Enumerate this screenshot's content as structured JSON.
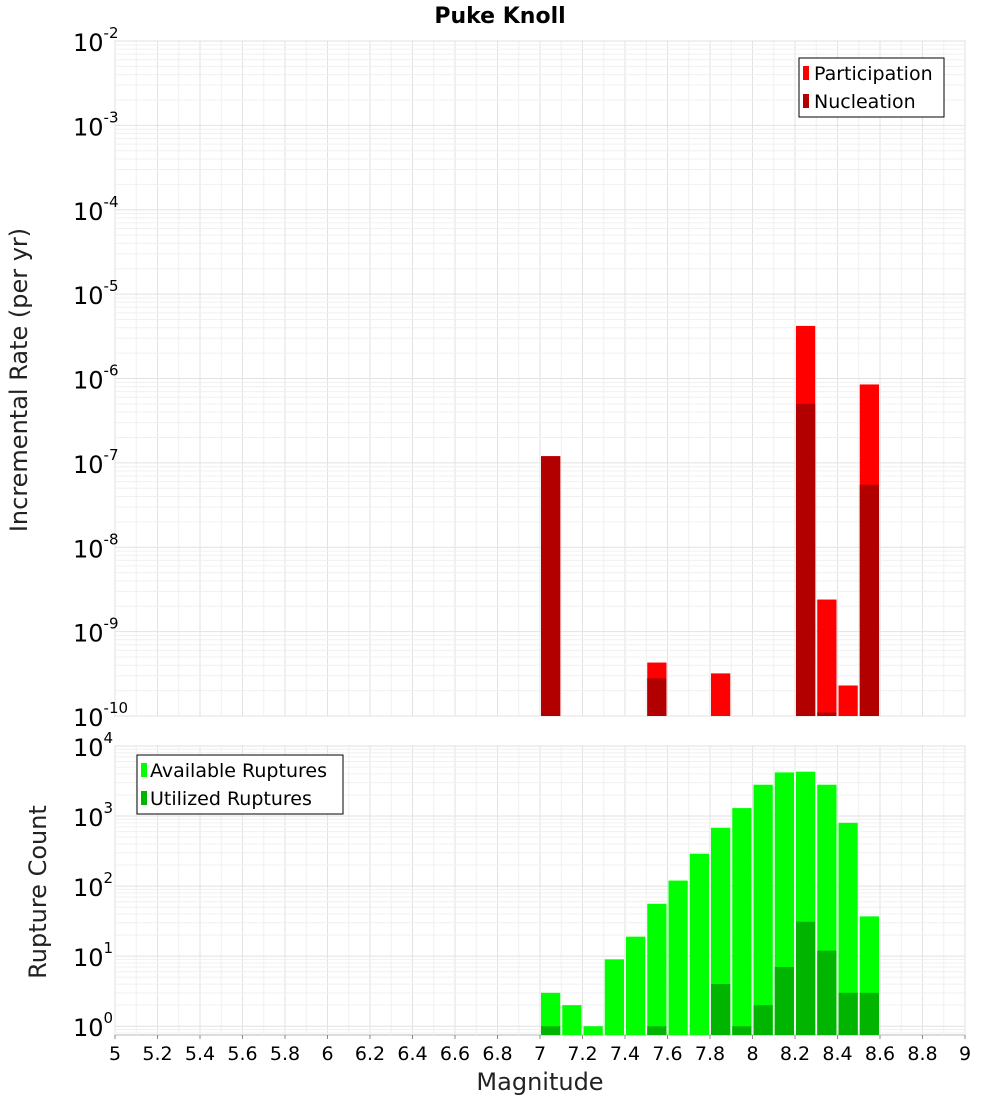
{
  "chart_data": [
    {
      "type": "bar",
      "title": "Puke Knoll",
      "xlabel": "",
      "ylabel": "Incremental Rate (per yr)",
      "xlim": [
        5,
        9
      ],
      "ylim": [
        1e-10,
        0.01
      ],
      "yscale": "log",
      "bar_width": 0.1,
      "grid": true,
      "legend_position": "top-right",
      "y_tick_exponents": [
        "-2",
        "-3",
        "-4",
        "-5",
        "-6",
        "-7",
        "-8",
        "-9",
        "-10"
      ],
      "y_tick_values": [
        0.01,
        0.001,
        0.0001,
        1e-05,
        1e-06,
        1e-07,
        1e-08,
        1e-09,
        1e-10
      ],
      "y_tick_base": "10",
      "series": [
        {
          "name": "Participation",
          "color": "#ff0000",
          "x": [
            7.05,
            7.55,
            7.85,
            8.25,
            8.35,
            8.45,
            8.55
          ],
          "values": [
            1.2e-07,
            4.3e-10,
            3.2e-10,
            4.2e-06,
            2.4e-09,
            2.3e-10,
            8.5e-07
          ]
        },
        {
          "name": "Nucleation",
          "color": "#b20000",
          "x": [
            7.05,
            7.55,
            8.25,
            8.35,
            8.55
          ],
          "values": [
            1.2e-07,
            2.8e-10,
            5e-07,
            1.1e-10,
            5.5e-08
          ]
        }
      ]
    },
    {
      "type": "bar",
      "title": "",
      "xlabel": "Magnitude",
      "ylabel": "Rupture Count",
      "xlim": [
        5,
        9
      ],
      "ylim": [
        0.75,
        10000
      ],
      "yscale": "log",
      "bar_width": 0.1,
      "grid": true,
      "legend_position": "top-left",
      "x_ticks": [
        "5",
        "5.2",
        "5.4",
        "5.6",
        "5.8",
        "6",
        "6.2",
        "6.4",
        "6.6",
        "6.8",
        "7",
        "7.2",
        "7.4",
        "7.6",
        "7.8",
        "8",
        "8.2",
        "8.4",
        "8.6",
        "8.8",
        "9"
      ],
      "y_tick_exponents": [
        "4",
        "3",
        "2",
        "1",
        "0"
      ],
      "y_tick_values": [
        10000,
        1000,
        100,
        10,
        1
      ],
      "y_tick_base": "10",
      "series": [
        {
          "name": "Available Ruptures",
          "color": "#00ff00",
          "x": [
            7.05,
            7.15,
            7.25,
            7.35,
            7.45,
            7.55,
            7.65,
            7.75,
            7.85,
            7.95,
            8.05,
            8.15,
            8.25,
            8.35,
            8.45,
            8.55
          ],
          "values": [
            3,
            2,
            1,
            9,
            19,
            56,
            120,
            290,
            680,
            1300,
            2800,
            4200,
            4300,
            2800,
            800,
            37
          ]
        },
        {
          "name": "Utilized Ruptures",
          "color": "#00b400",
          "x": [
            7.05,
            7.55,
            7.85,
            7.95,
            8.05,
            8.15,
            8.25,
            8.35,
            8.45,
            8.55
          ],
          "values": [
            1,
            1,
            4,
            1,
            2,
            7,
            31,
            12,
            3,
            3
          ]
        }
      ]
    }
  ]
}
